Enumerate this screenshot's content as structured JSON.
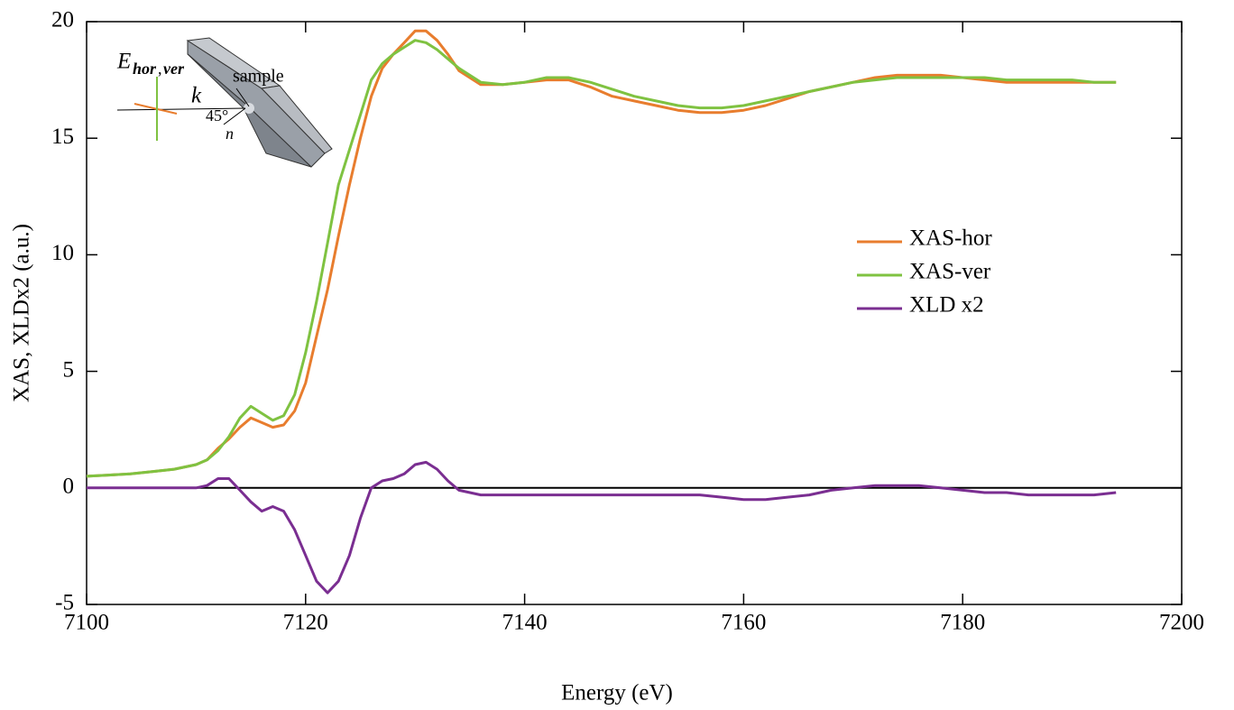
{
  "chart_data": {
    "type": "line",
    "xlabel": "Energy (eV)",
    "ylabel": "XAS, XLDx2 (a.u.)",
    "xlim": [
      7100,
      7200
    ],
    "ylim": [
      -5,
      20
    ],
    "xticks": [
      7100,
      7120,
      7140,
      7160,
      7180,
      7200
    ],
    "yticks": [
      -5,
      0,
      5,
      10,
      15,
      20
    ],
    "legend": "right",
    "x": [
      7100,
      7102,
      7104,
      7106,
      7108,
      7110,
      7111,
      7112,
      7113,
      7114,
      7115,
      7116,
      7117,
      7118,
      7119,
      7120,
      7121,
      7122,
      7123,
      7124,
      7125,
      7126,
      7127,
      7128,
      7129,
      7130,
      7131,
      7132,
      7133,
      7134,
      7136,
      7138,
      7140,
      7142,
      7144,
      7146,
      7148,
      7150,
      7152,
      7154,
      7156,
      7158,
      7160,
      7162,
      7164,
      7166,
      7168,
      7170,
      7172,
      7174,
      7176,
      7178,
      7180,
      7182,
      7184,
      7186,
      7188,
      7190,
      7192,
      7194
    ],
    "series": [
      {
        "name": "XAS-hor",
        "color": "#e87d2e",
        "values": [
          0.5,
          0.55,
          0.6,
          0.7,
          0.8,
          1.0,
          1.2,
          1.7,
          2.1,
          2.6,
          3.0,
          2.8,
          2.6,
          2.7,
          3.3,
          4.5,
          6.5,
          8.5,
          10.8,
          13.0,
          15.0,
          16.8,
          18.0,
          18.6,
          19.1,
          19.6,
          19.6,
          19.2,
          18.6,
          17.9,
          17.3,
          17.3,
          17.4,
          17.5,
          17.5,
          17.2,
          16.8,
          16.6,
          16.4,
          16.2,
          16.1,
          16.1,
          16.2,
          16.4,
          16.7,
          17.0,
          17.2,
          17.4,
          17.6,
          17.7,
          17.7,
          17.7,
          17.6,
          17.5,
          17.4,
          17.4,
          17.4,
          17.4,
          17.4,
          17.4
        ]
      },
      {
        "name": "XAS-ver",
        "color": "#7fc241",
        "values": [
          0.5,
          0.55,
          0.6,
          0.7,
          0.8,
          1.0,
          1.2,
          1.6,
          2.2,
          3.0,
          3.5,
          3.2,
          2.9,
          3.1,
          4.0,
          5.8,
          8.0,
          10.5,
          13.0,
          14.5,
          16.0,
          17.5,
          18.2,
          18.6,
          18.9,
          19.2,
          19.1,
          18.8,
          18.4,
          18.0,
          17.4,
          17.3,
          17.4,
          17.6,
          17.6,
          17.4,
          17.1,
          16.8,
          16.6,
          16.4,
          16.3,
          16.3,
          16.4,
          16.6,
          16.8,
          17.0,
          17.2,
          17.4,
          17.5,
          17.6,
          17.6,
          17.6,
          17.6,
          17.6,
          17.5,
          17.5,
          17.5,
          17.5,
          17.4,
          17.4
        ]
      },
      {
        "name": "XLD x2",
        "color": "#7a2e91",
        "values": [
          0,
          0,
          0,
          0,
          0,
          0,
          0.1,
          0.4,
          0.4,
          -0.1,
          -0.6,
          -1.0,
          -0.8,
          -1.0,
          -1.8,
          -2.9,
          -4.0,
          -4.5,
          -4.0,
          -2.9,
          -1.3,
          0.0,
          0.3,
          0.4,
          0.6,
          1.0,
          1.1,
          0.8,
          0.3,
          -0.1,
          -0.3,
          -0.3,
          -0.3,
          -0.3,
          -0.3,
          -0.3,
          -0.3,
          -0.3,
          -0.3,
          -0.3,
          -0.3,
          -0.4,
          -0.5,
          -0.5,
          -0.4,
          -0.3,
          -0.1,
          0.0,
          0.1,
          0.1,
          0.1,
          0.0,
          -0.1,
          -0.2,
          -0.2,
          -0.3,
          -0.3,
          -0.3,
          -0.3,
          -0.2
        ]
      }
    ],
    "inset": {
      "E": "E",
      "E_subscript": [
        "hor",
        ",",
        "ver"
      ],
      "k": "k",
      "angle": "45°",
      "n": "n",
      "sample": "sample"
    }
  }
}
